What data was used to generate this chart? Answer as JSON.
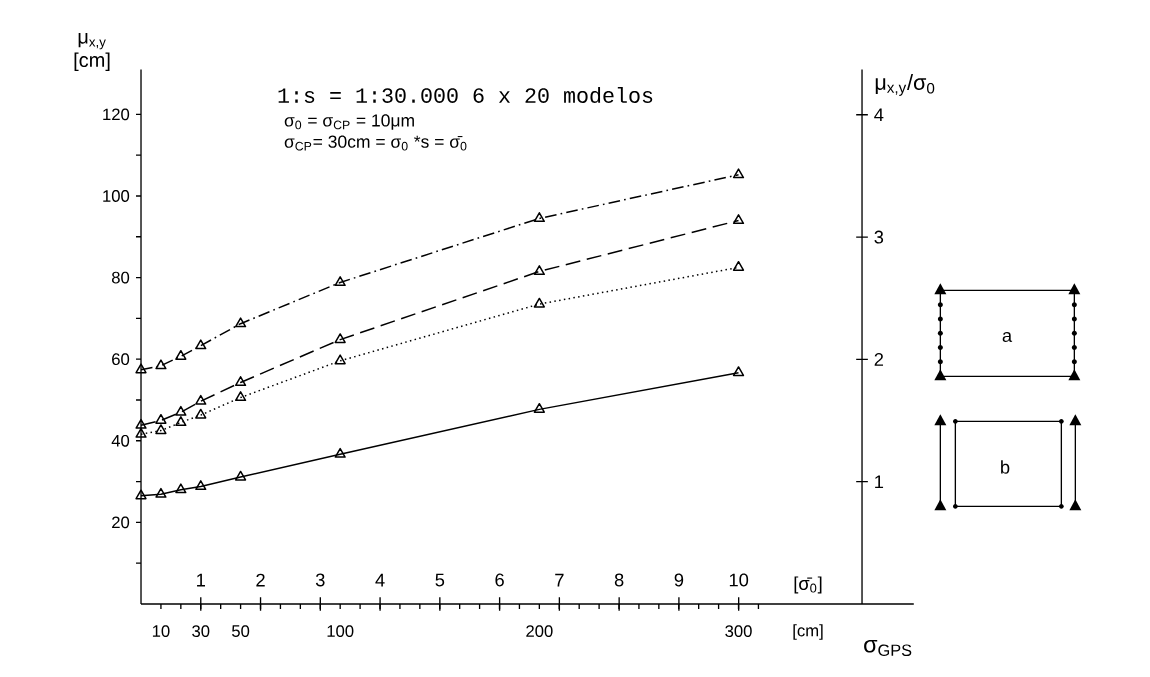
{
  "chart_data": {
    "type": "line",
    "annotations": [
      "1:s  = 1:30.000  6 x 20 modelos",
      "σ$_{0}$ = σ$_{CP}$ = 10μm",
      "σ$_{CP}$= 30cm = σ$_{0}$ *s = σ̄$_{0}$",
      "[cm]",
      "a",
      "b"
    ],
    "xlabel": "σ$_{GPS}$",
    "x2label": "[σ̄$_{0}$]",
    "ylabel": "μ$_{x,y}$ [cm]",
    "y2label": "μ$_{x,y}$/σ$_{0}$",
    "xlim": [
      0,
      388
    ],
    "x2lim": [
      0,
      12.93
    ],
    "ylim": [
      0,
      131
    ],
    "y2lim": [
      0,
      4.37
    ],
    "xticks": [
      10,
      {
        "value": 20,
        "label": null
      },
      30,
      {
        "value": 40,
        "label": null
      },
      50,
      {
        "value": 60,
        "label": null
      },
      {
        "value": 70,
        "label": null
      },
      {
        "value": 80,
        "label": null
      },
      {
        "value": 90,
        "label": null
      },
      100,
      {
        "value": 110,
        "label": null
      },
      {
        "value": 120,
        "label": null
      },
      {
        "value": 130,
        "label": null
      },
      {
        "value": 140,
        "label": null
      },
      {
        "value": 150,
        "label": null
      },
      {
        "value": 160,
        "label": null
      },
      {
        "value": 170,
        "label": null
      },
      {
        "value": 180,
        "label": null
      },
      {
        "value": 190,
        "label": null
      },
      200,
      {
        "value": 210,
        "label": null
      },
      {
        "value": 220,
        "label": null
      },
      {
        "value": 230,
        "label": null
      },
      {
        "value": 240,
        "label": null
      },
      {
        "value": 250,
        "label": null
      },
      {
        "value": 260,
        "label": null
      },
      {
        "value": 270,
        "label": null
      },
      {
        "value": 280,
        "label": null
      },
      {
        "value": 290,
        "label": null
      },
      300,
      {
        "value": 310,
        "label": null
      }
    ],
    "x2ticks": [
      1,
      2,
      3,
      4,
      5,
      6,
      7,
      8,
      9,
      10
    ],
    "yticks": [
      {
        "value": 10,
        "label": null
      },
      20,
      {
        "value": 30,
        "label": null
      },
      40,
      {
        "value": 50,
        "label": null
      },
      60,
      {
        "value": 70,
        "label": null
      },
      80,
      {
        "value": 90,
        "label": null
      },
      100,
      {
        "value": 110,
        "label": null
      },
      120
    ],
    "y2ticks": [
      1,
      2,
      3,
      4
    ],
    "marker": "triangle",
    "x": [
      0,
      10,
      20,
      30,
      50,
      100,
      200,
      300
    ],
    "series": [
      {
        "color": "#000000",
        "line_style": "solid",
        "values": [
          26.5,
          26.9,
          28.0,
          28.8,
          31.1,
          36.7,
          47.7,
          56.7
        ]
      },
      {
        "color": "#000000",
        "line_style": "dotted",
        "values": [
          41.6,
          42.5,
          44.5,
          46.3,
          50.6,
          59.6,
          73.5,
          82.5
        ]
      },
      {
        "color": "#000000",
        "line_style": "dashed",
        "values": [
          43.8,
          45.0,
          47.0,
          49.7,
          54.3,
          64.8,
          81.5,
          94.0
        ]
      },
      {
        "color": "#000000",
        "line_style": "dashdot",
        "values": [
          57.4,
          58.4,
          60.7,
          63.3,
          68.7,
          78.8,
          94.5,
          105.2
        ]
      }
    ]
  }
}
